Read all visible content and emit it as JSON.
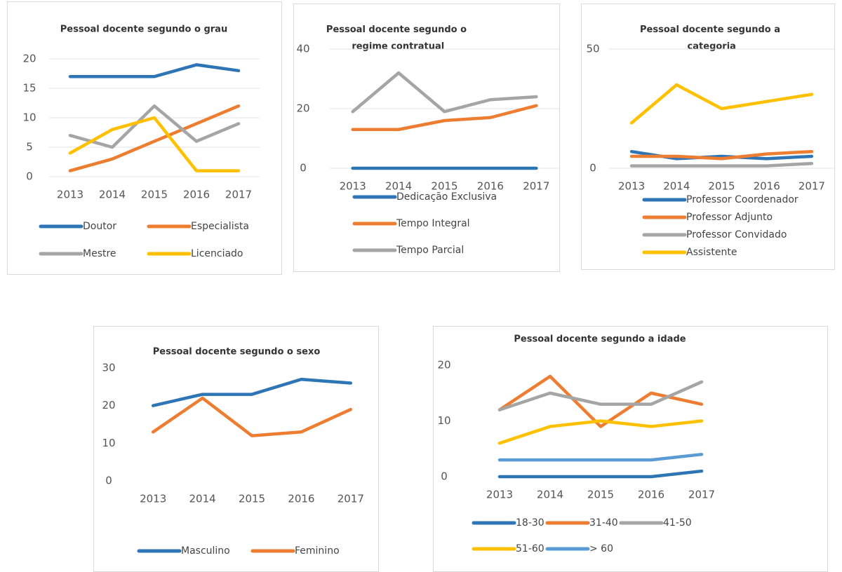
{
  "chart_data": [
    {
      "type": "line",
      "title": "Pessoal docente segundo o grau",
      "categories": [
        "2013",
        "2014",
        "2015",
        "2016",
        "2017"
      ],
      "ylim": [
        0,
        20
      ],
      "yticks": [
        0,
        5,
        10,
        15,
        20
      ],
      "grid": true,
      "series": [
        {
          "name": "Doutor",
          "color": "#2e75b6",
          "values": [
            17,
            17,
            17,
            19,
            18
          ]
        },
        {
          "name": "Especialista",
          "color": "#ed7d31",
          "values": [
            1,
            3,
            6,
            9,
            12
          ]
        },
        {
          "name": "Mestre",
          "color": "#a5a5a5",
          "values": [
            7,
            5,
            12,
            6,
            9
          ]
        },
        {
          "name": "Licenciado",
          "color": "#ffc000",
          "values": [
            4,
            8,
            10,
            1,
            1
          ]
        }
      ]
    },
    {
      "type": "line",
      "title": "Pessoal docente segundo o regime contratual",
      "categories": [
        "2013",
        "2014",
        "2015",
        "2016",
        "2017"
      ],
      "ylim": [
        0,
        40
      ],
      "yticks": [
        0,
        20,
        40
      ],
      "grid": true,
      "series": [
        {
          "name": "Dedicação Exclusiva",
          "color": "#2e75b6",
          "values": [
            0,
            0,
            0,
            0,
            0
          ]
        },
        {
          "name": "Tempo Integral",
          "color": "#ed7d31",
          "values": [
            13,
            13,
            16,
            17,
            21
          ]
        },
        {
          "name": "Tempo Parcial",
          "color": "#a5a5a5",
          "values": [
            19,
            32,
            19,
            23,
            24
          ]
        }
      ]
    },
    {
      "type": "line",
      "title": "Pessoal docente segundo a categoria",
      "categories": [
        "2013",
        "2014",
        "2015",
        "2016",
        "2017"
      ],
      "ylim": [
        0,
        50
      ],
      "yticks": [
        0,
        50
      ],
      "grid": true,
      "series": [
        {
          "name": "Professor Coordenador",
          "color": "#2e75b6",
          "values": [
            7,
            4,
            5,
            4,
            5
          ]
        },
        {
          "name": "Professor Adjunto",
          "color": "#ed7d31",
          "values": [
            5,
            5,
            4,
            6,
            7
          ]
        },
        {
          "name": "Professor Convidado",
          "color": "#a5a5a5",
          "values": [
            1,
            1,
            1,
            1,
            2
          ]
        },
        {
          "name": "Assistente",
          "color": "#ffc000",
          "values": [
            19,
            35,
            25,
            28,
            31
          ]
        }
      ]
    },
    {
      "type": "line",
      "title": "Pessoal docente segundo o sexo",
      "categories": [
        "2013",
        "2014",
        "2015",
        "2016",
        "2017"
      ],
      "ylim": [
        0,
        30
      ],
      "yticks": [
        0,
        10,
        20,
        30
      ],
      "grid": false,
      "series": [
        {
          "name": "Masculino",
          "color": "#2e75b6",
          "values": [
            20,
            23,
            23,
            27,
            26
          ]
        },
        {
          "name": "Feminino",
          "color": "#ed7d31",
          "values": [
            13,
            22,
            12,
            13,
            19
          ]
        }
      ]
    },
    {
      "type": "line",
      "title": "Pessoal docente segundo a idade",
      "categories": [
        "2013",
        "2014",
        "2015",
        "2016",
        "2017"
      ],
      "ylim": [
        0,
        20
      ],
      "yticks": [
        0,
        10,
        20
      ],
      "grid": false,
      "series": [
        {
          "name": "18-30",
          "color": "#2e75b6",
          "values": [
            0,
            0,
            0,
            0,
            1
          ]
        },
        {
          "name": "31-40",
          "color": "#ed7d31",
          "values": [
            12,
            18,
            9,
            15,
            13
          ]
        },
        {
          "name": "41-50",
          "color": "#a5a5a5",
          "values": [
            12,
            15,
            13,
            13,
            17
          ]
        },
        {
          "name": "51-60",
          "color": "#ffc000",
          "values": [
            6,
            9,
            10,
            9,
            10
          ]
        },
        {
          "name": "> 60",
          "color": "#5b9bd5",
          "values": [
            3,
            3,
            3,
            3,
            4
          ]
        }
      ]
    }
  ]
}
